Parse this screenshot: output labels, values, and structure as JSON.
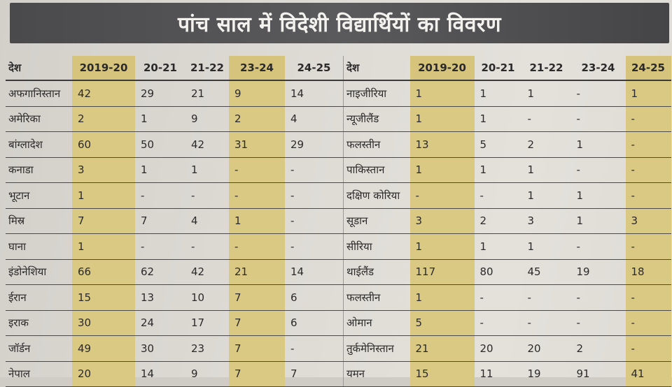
{
  "title": "पांच साल में विदेशी विद्यार्थियों का विवरण",
  "headers": [
    "देश",
    "2019-20",
    "20-21",
    "21-22",
    "23-24",
    "24-25"
  ],
  "left_rows": [
    [
      "अफगानिस्तान",
      "42",
      "29",
      "21",
      "9",
      "14"
    ],
    [
      "अमेरिका",
      "2",
      "1",
      "9",
      "2",
      "4"
    ],
    [
      "बांग्लादेश",
      "60",
      "50",
      "42",
      "31",
      "29"
    ],
    [
      "कनाडा",
      "3",
      "1",
      "1",
      "-",
      "-"
    ],
    [
      "भूटान",
      "1",
      "-",
      "-",
      "-",
      "-"
    ],
    [
      "मिस्र",
      "7",
      "7",
      "4",
      "1",
      "-"
    ],
    [
      "घाना",
      "1",
      "-",
      "-",
      "-",
      "-"
    ],
    [
      "इंडोनेशिया",
      "66",
      "62",
      "42",
      "21",
      "14"
    ],
    [
      "ईरान",
      "15",
      "13",
      "10",
      "7",
      "6"
    ],
    [
      "इराक",
      "30",
      "24",
      "17",
      "7",
      "6"
    ],
    [
      "जॉर्डन",
      "49",
      "30",
      "23",
      "7",
      "-"
    ],
    [
      "नेपाल",
      "20",
      "14",
      "9",
      "7",
      "7"
    ]
  ],
  "right_rows": [
    [
      "नाइजीरिया",
      "1",
      "1",
      "1",
      "-",
      "1"
    ],
    [
      "न्यूजीलैंड",
      "1",
      "1",
      "-",
      "-",
      "-"
    ],
    [
      "फलस्तीन",
      "13",
      "5",
      "2",
      "1",
      "-"
    ],
    [
      "पाकिस्तान",
      "1",
      "1",
      "1",
      "-",
      "-"
    ],
    [
      "दक्षिण कोरिया",
      "-",
      "-",
      "1",
      "1",
      "-"
    ],
    [
      "सूडान",
      "3",
      "2",
      "3",
      "1",
      "3"
    ],
    [
      "सीरिया",
      "1",
      "1",
      "1",
      "-",
      "-"
    ],
    [
      "थाईलैंड",
      "117",
      "80",
      "45",
      "19",
      "18"
    ],
    [
      "फलस्तीन",
      "1",
      "-",
      "-",
      "-",
      "-"
    ],
    [
      "ओमान",
      "5",
      "-",
      "-",
      "-",
      "-"
    ],
    [
      "तुर्कमेनिस्तान",
      "21",
      "20",
      "20",
      "2",
      "-"
    ],
    [
      "यमन",
      "15",
      "11",
      "19",
      "91",
      "41"
    ]
  ],
  "colors": {
    "title_bg": "#4f4f51",
    "highlight": "#d9c983",
    "paper": "#dedbd5"
  }
}
